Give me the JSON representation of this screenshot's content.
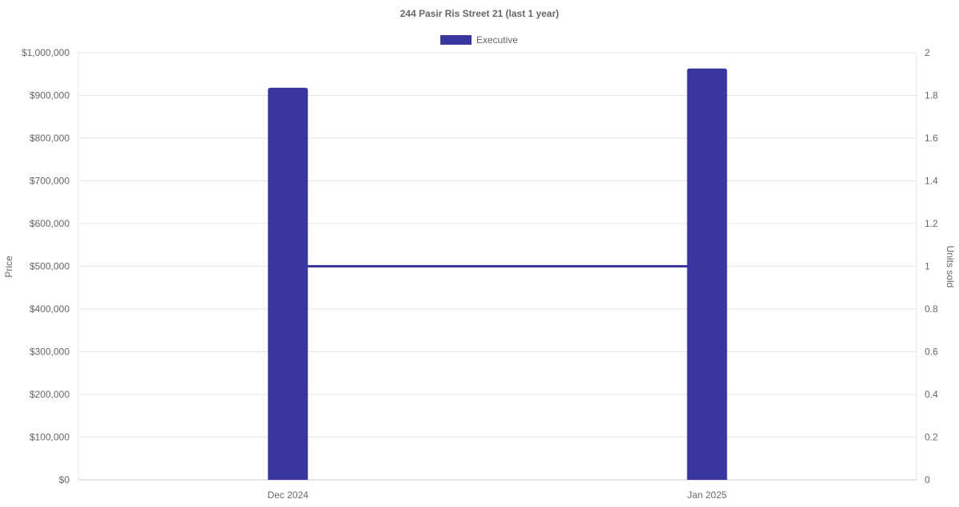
{
  "chart_data": {
    "type": "bar",
    "title": "244 Pasir Ris Street 21 (last 1 year)",
    "categories": [
      "Dec 2024",
      "Jan 2025"
    ],
    "series": [
      {
        "name": "Executive",
        "type": "bar",
        "axis": "left",
        "values": [
          918000,
          963000
        ],
        "color": "#3a36a0"
      },
      {
        "type": "line",
        "axis": "right",
        "values": [
          1,
          1
        ],
        "color": "#3a36a0"
      }
    ],
    "ylabel": "Price",
    "y2label": "Units sold",
    "ylim": [
      0,
      1000000
    ],
    "y2lim": [
      0,
      2
    ],
    "yticks": [
      "$0",
      "$100,000",
      "$200,000",
      "$300,000",
      "$400,000",
      "$500,000",
      "$600,000",
      "$700,000",
      "$800,000",
      "$900,000",
      "$1,000,000"
    ],
    "y2ticks": [
      "0",
      "0.2",
      "0.4",
      "0.6",
      "0.8",
      "1",
      "1.2",
      "1.4",
      "1.6",
      "1.8",
      "2"
    ],
    "grid": true,
    "legend": "top"
  }
}
